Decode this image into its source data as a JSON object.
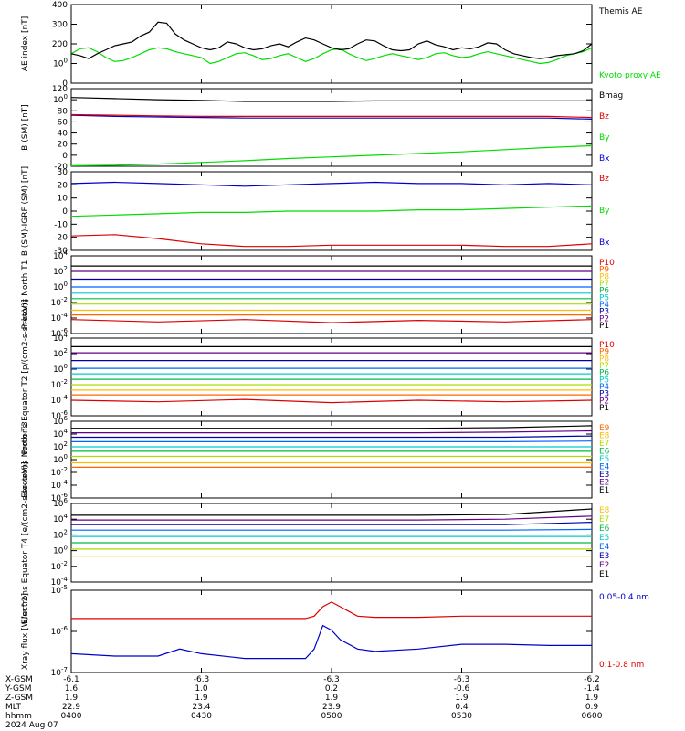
{
  "date_label": "2024 Aug 07",
  "footer_rows": [
    {
      "label": "X-GSM",
      "values": [
        "-6.1",
        "-6.3",
        "-6.3",
        "-6.3",
        "-6.2"
      ]
    },
    {
      "label": "Y-GSM",
      "values": [
        "1.6",
        "1.0",
        "0.2",
        "-0.6",
        "-1.4"
      ]
    },
    {
      "label": "Z-GSM",
      "values": [
        "1.9",
        "1.9",
        "1.9",
        "1.9",
        "1.9"
      ]
    },
    {
      "label": "MLT",
      "values": [
        "22.9",
        "23.4",
        "23.9",
        "0.4",
        "0.9"
      ]
    },
    {
      "label": "hhmm",
      "values": [
        "0400",
        "0430",
        "0500",
        "0530",
        "0600"
      ]
    }
  ],
  "chart_data": [
    {
      "type": "line",
      "ylabel": "AE index [nT]",
      "ylim": [
        0,
        400
      ],
      "log": false,
      "ticks": [
        "0",
        "100",
        "200",
        "300",
        "400"
      ],
      "x": [
        0,
        2,
        4,
        6,
        8,
        10,
        12,
        14,
        16,
        18,
        20,
        22,
        24,
        26,
        28,
        30,
        32,
        34,
        36,
        38,
        40,
        42,
        44,
        46,
        48,
        50,
        52,
        54,
        56,
        58,
        60,
        62,
        64,
        66,
        68,
        70,
        72,
        74,
        76,
        78,
        80,
        82,
        84,
        86,
        88,
        90,
        92,
        94,
        96,
        98,
        100,
        102,
        104,
        106,
        108,
        110,
        112,
        114,
        116,
        118,
        120
      ],
      "series": [
        {
          "name": "Kyoto proxy AE",
          "color": "#00dd00",
          "values": [
            150,
            175,
            180,
            160,
            130,
            110,
            115,
            130,
            150,
            170,
            180,
            175,
            160,
            150,
            140,
            130,
            100,
            110,
            130,
            150,
            155,
            140,
            120,
            125,
            140,
            150,
            130,
            110,
            125,
            150,
            170,
            175,
            150,
            130,
            115,
            125,
            140,
            150,
            140,
            130,
            120,
            130,
            150,
            155,
            140,
            130,
            135,
            150,
            160,
            150,
            140,
            130,
            120,
            110,
            100,
            105,
            120,
            140,
            150,
            160,
            180
          ]
        },
        {
          "name": "Themis AE",
          "color": "#000000",
          "values": [
            150,
            140,
            125,
            150,
            170,
            190,
            200,
            210,
            240,
            260,
            310,
            305,
            250,
            220,
            200,
            180,
            170,
            180,
            210,
            200,
            180,
            170,
            175,
            190,
            200,
            185,
            210,
            230,
            220,
            200,
            180,
            170,
            175,
            200,
            220,
            215,
            190,
            170,
            165,
            170,
            200,
            215,
            195,
            185,
            170,
            180,
            175,
            185,
            205,
            200,
            170,
            150,
            140,
            130,
            125,
            130,
            140,
            145,
            150,
            165,
            200
          ]
        }
      ]
    },
    {
      "type": "line",
      "ylabel": "B (SM) [nT]",
      "ylim": [
        -20,
        120
      ],
      "log": false,
      "ticks": [
        "-20",
        "0",
        "20",
        "40",
        "60",
        "80",
        "100",
        "120"
      ],
      "x": [
        0,
        10,
        20,
        30,
        40,
        50,
        60,
        70,
        80,
        90,
        100,
        110,
        120
      ],
      "series": [
        {
          "name": "Bx",
          "color": "#0000cc",
          "values": [
            72,
            70,
            69,
            68,
            67,
            67,
            67,
            67,
            67,
            67,
            67,
            67,
            65
          ]
        },
        {
          "name": "By",
          "color": "#00dd00",
          "values": [
            -19,
            -18,
            -16,
            -13,
            -10,
            -6,
            -3,
            0,
            3,
            6,
            10,
            14,
            17
          ]
        },
        {
          "name": "Bz",
          "color": "#dd0000",
          "values": [
            73,
            72,
            71,
            70,
            70,
            70,
            70,
            70,
            70,
            70,
            70,
            70,
            68
          ]
        },
        {
          "name": "Bmag",
          "color": "#000000",
          "values": [
            104,
            102,
            100,
            99,
            97,
            97,
            97,
            98,
            98,
            98,
            98,
            98,
            98
          ]
        }
      ]
    },
    {
      "type": "line",
      "ylabel": "B (SM)-IGRF (SM) [nT]",
      "ylim": [
        -30,
        30
      ],
      "log": false,
      "ticks": [
        "-30",
        "-20",
        "-10",
        "0",
        "10",
        "20",
        "30"
      ],
      "x": [
        0,
        10,
        20,
        30,
        40,
        50,
        60,
        70,
        80,
        90,
        100,
        110,
        120
      ],
      "series": [
        {
          "name": "Bx",
          "color": "#0000cc",
          "values": [
            21,
            22,
            21,
            20,
            19,
            20,
            21,
            22,
            21,
            21,
            20,
            21,
            20
          ]
        },
        {
          "name": "By",
          "color": "#00dd00",
          "values": [
            -4,
            -3,
            -2,
            -1,
            -1,
            0,
            0,
            0,
            1,
            1,
            2,
            3,
            4
          ]
        },
        {
          "name": "Bz",
          "color": "#dd0000",
          "values": [
            -19,
            -18,
            -21,
            -25,
            -27,
            -27,
            -26,
            -26,
            -26,
            -26,
            -27,
            -27,
            -25
          ]
        }
      ]
    },
    {
      "type": "line",
      "ylabel": "Protons North T1",
      "ylim": [
        -6,
        4
      ],
      "log": true,
      "ticks": [
        "10-6",
        "10-4",
        "10-2",
        "100",
        "102",
        "104"
      ],
      "x": [
        0,
        20,
        40,
        60,
        80,
        100,
        120
      ],
      "series": [
        {
          "name": "P1",
          "color": "#000000",
          "values": [
            2.7,
            2.7,
            2.7,
            2.7,
            2.7,
            2.7,
            2.7
          ]
        },
        {
          "name": "P2",
          "color": "#660088",
          "values": [
            2.0,
            2.0,
            2.0,
            2.0,
            2.0,
            2.0,
            2.0
          ]
        },
        {
          "name": "P3",
          "color": "#0000aa",
          "values": [
            1.0,
            1.0,
            1.0,
            1.0,
            1.0,
            1.0,
            1.0
          ]
        },
        {
          "name": "P4",
          "color": "#0066ff",
          "values": [
            0.0,
            0.0,
            0.0,
            0.0,
            0.0,
            0.0,
            0.0
          ]
        },
        {
          "name": "P5",
          "color": "#00cccc",
          "values": [
            -0.8,
            -0.8,
            -0.8,
            -0.8,
            -0.8,
            -0.8,
            -0.8
          ]
        },
        {
          "name": "P6",
          "color": "#00bb44",
          "values": [
            -1.5,
            -1.5,
            -1.5,
            -1.5,
            -1.5,
            -1.5,
            -1.5
          ]
        },
        {
          "name": "P7",
          "color": "#aadd00",
          "values": [
            -2.2,
            -2.2,
            -2.2,
            -2.2,
            -2.2,
            -2.2,
            -2.2
          ]
        },
        {
          "name": "P8",
          "color": "#ffbb00",
          "values": [
            -3.0,
            -3.0,
            -3.0,
            -3.0,
            -3.0,
            -3.0,
            -3.0
          ]
        },
        {
          "name": "P9",
          "color": "#ff6600",
          "values": [
            -3.6,
            -3.6,
            -3.6,
            -3.6,
            -3.6,
            -3.6,
            -3.6
          ]
        },
        {
          "name": "P10",
          "color": "#dd0000",
          "values": [
            -4.2,
            -4.5,
            -4.2,
            -4.6,
            -4.3,
            -4.5,
            -4.2
          ]
        }
      ]
    },
    {
      "type": "line",
      "ylabel": "Protons Equator T2 [p/(cm2-s-sr-keV)]",
      "ylim": [
        -6,
        4
      ],
      "log": true,
      "ticks": [
        "10-6",
        "10-4",
        "10-2",
        "100",
        "102",
        "104"
      ],
      "x": [
        0,
        20,
        40,
        60,
        80,
        100,
        120
      ],
      "series": [
        {
          "name": "P1",
          "color": "#000000",
          "values": [
            2.9,
            2.9,
            2.9,
            2.9,
            2.9,
            2.9,
            2.9
          ]
        },
        {
          "name": "P2",
          "color": "#660088",
          "values": [
            2.1,
            2.1,
            2.1,
            2.1,
            2.1,
            2.1,
            2.1
          ]
        },
        {
          "name": "P3",
          "color": "#0000aa",
          "values": [
            1.1,
            1.1,
            1.1,
            1.1,
            1.1,
            1.1,
            1.1
          ]
        },
        {
          "name": "P4",
          "color": "#0066ff",
          "values": [
            0.1,
            0.1,
            0.1,
            0.1,
            0.1,
            0.1,
            0.1
          ]
        },
        {
          "name": "P5",
          "color": "#00cccc",
          "values": [
            -0.6,
            -0.6,
            -0.6,
            -0.6,
            -0.6,
            -0.6,
            -0.6
          ]
        },
        {
          "name": "P6",
          "color": "#00bb44",
          "values": [
            -1.3,
            -1.3,
            -1.3,
            -1.3,
            -1.3,
            -1.3,
            -1.3
          ]
        },
        {
          "name": "P7",
          "color": "#aadd00",
          "values": [
            -2.0,
            -2.0,
            -2.0,
            -2.0,
            -2.0,
            -2.0,
            -2.0
          ]
        },
        {
          "name": "P8",
          "color": "#ffbb00",
          "values": [
            -2.7,
            -2.7,
            -2.7,
            -2.7,
            -2.7,
            -2.7,
            -2.7
          ]
        },
        {
          "name": "P9",
          "color": "#ff6600",
          "values": [
            -3.3,
            -3.3,
            -3.3,
            -3.3,
            -3.3,
            -3.3,
            -3.3
          ]
        },
        {
          "name": "P10",
          "color": "#dd0000",
          "values": [
            -4.0,
            -4.2,
            -3.9,
            -4.3,
            -4.0,
            -4.2,
            -4.0
          ]
        }
      ]
    },
    {
      "type": "line",
      "ylabel": "Electrons North T3",
      "ylim": [
        -6,
        6
      ],
      "log": true,
      "ticks": [
        "10-6",
        "10-4",
        "10-2",
        "100",
        "102",
        "104",
        "106"
      ],
      "x": [
        0,
        20,
        40,
        60,
        80,
        100,
        120
      ],
      "series": [
        {
          "name": "E1",
          "color": "#000000",
          "values": [
            4.9,
            4.9,
            4.9,
            4.9,
            4.9,
            5.0,
            5.3
          ]
        },
        {
          "name": "E2",
          "color": "#660088",
          "values": [
            4.2,
            4.2,
            4.2,
            4.2,
            4.2,
            4.3,
            4.5
          ]
        },
        {
          "name": "E3",
          "color": "#0000aa",
          "values": [
            3.5,
            3.5,
            3.5,
            3.5,
            3.5,
            3.5,
            3.7
          ]
        },
        {
          "name": "E4",
          "color": "#0066ff",
          "values": [
            2.8,
            2.8,
            2.8,
            2.8,
            2.8,
            2.8,
            2.9
          ]
        },
        {
          "name": "E5",
          "color": "#00cccc",
          "values": [
            2.0,
            2.0,
            2.0,
            2.0,
            2.0,
            2.0,
            2.0
          ]
        },
        {
          "name": "E6",
          "color": "#00bb44",
          "values": [
            1.3,
            1.3,
            1.3,
            1.3,
            1.3,
            1.3,
            1.3
          ]
        },
        {
          "name": "E7",
          "color": "#aadd00",
          "values": [
            0.5,
            0.5,
            0.5,
            0.5,
            0.5,
            0.5,
            0.5
          ]
        },
        {
          "name": "E8",
          "color": "#ffbb00",
          "values": [
            -0.5,
            -0.5,
            -0.5,
            -0.5,
            -0.5,
            -0.5,
            -0.5
          ]
        },
        {
          "name": "E9",
          "color": "#ff6600",
          "values": [
            -1.2,
            -1.2,
            -1.2,
            -1.2,
            -1.2,
            -1.2,
            -1.2
          ]
        }
      ]
    },
    {
      "type": "line",
      "ylabel": "Electrons Equator T4 [e/(cm2-s-sr-keV)]",
      "ylim": [
        -4,
        6
      ],
      "log": true,
      "ticks": [
        "10-4",
        "10-2",
        "100",
        "102",
        "104",
        "106"
      ],
      "x": [
        0,
        20,
        40,
        60,
        80,
        100,
        120
      ],
      "series": [
        {
          "name": "E1",
          "color": "#000000",
          "values": [
            4.5,
            4.5,
            4.5,
            4.5,
            4.5,
            4.6,
            5.3
          ]
        },
        {
          "name": "E2",
          "color": "#660088",
          "values": [
            3.9,
            3.9,
            3.9,
            3.9,
            3.9,
            4.0,
            4.4
          ]
        },
        {
          "name": "E3",
          "color": "#0000aa",
          "values": [
            3.3,
            3.3,
            3.3,
            3.3,
            3.3,
            3.3,
            3.6
          ]
        },
        {
          "name": "E4",
          "color": "#0066ff",
          "values": [
            2.6,
            2.6,
            2.6,
            2.6,
            2.6,
            2.6,
            2.7
          ]
        },
        {
          "name": "E5",
          "color": "#00cccc",
          "values": [
            1.8,
            1.8,
            1.8,
            1.8,
            1.8,
            1.8,
            1.8
          ]
        },
        {
          "name": "E6",
          "color": "#00bb44",
          "values": [
            1.0,
            1.0,
            1.0,
            1.0,
            1.0,
            1.0,
            1.0
          ]
        },
        {
          "name": "E7",
          "color": "#aadd00",
          "values": [
            0.2,
            0.2,
            0.2,
            0.2,
            0.2,
            0.2,
            0.2
          ]
        },
        {
          "name": "E8",
          "color": "#ffbb00",
          "values": [
            -0.7,
            -0.7,
            -0.7,
            -0.7,
            -0.7,
            -0.7,
            -0.7
          ]
        }
      ]
    },
    {
      "type": "line",
      "ylabel": "Xray flux [W/m^2]",
      "ylim": [
        -8,
        -4.5
      ],
      "log": true,
      "ticks": [
        "10-7",
        "10-6",
        "10-5"
      ],
      "x": [
        0,
        10,
        20,
        25,
        30,
        40,
        50,
        54,
        56,
        58,
        60,
        62,
        66,
        70,
        80,
        90,
        100,
        110,
        120
      ],
      "series": [
        {
          "name": "0.1-0.8 nm",
          "color": "#dd0000",
          "values": [
            -5.7,
            -5.7,
            -5.7,
            -5.7,
            -5.7,
            -5.7,
            -5.7,
            -5.7,
            -5.6,
            -5.2,
            -5.0,
            -5.2,
            -5.6,
            -5.65,
            -5.65,
            -5.6,
            -5.6,
            -5.6,
            -5.6
          ]
        },
        {
          "name": "0.05-0.4 nm",
          "color": "#0000cc",
          "values": [
            -7.2,
            -7.3,
            -7.3,
            -7.0,
            -7.2,
            -7.4,
            -7.4,
            -7.4,
            -7.0,
            -6.0,
            -6.2,
            -6.6,
            -7.0,
            -7.1,
            -7.0,
            -6.8,
            -6.8,
            -6.85,
            -6.85
          ]
        }
      ]
    }
  ]
}
